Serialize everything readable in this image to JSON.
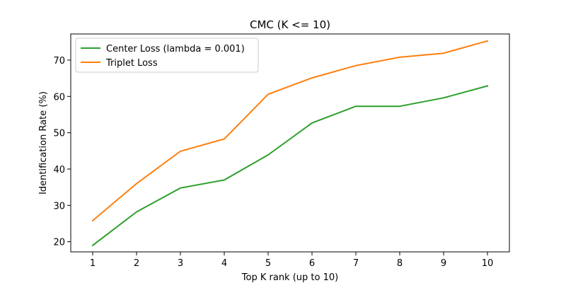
{
  "chart_data": {
    "type": "line",
    "title": "CMC (K <= 10)",
    "xlabel": "Top K rank (up to 10)",
    "ylabel": "Identification Rate (%)",
    "x": [
      1,
      2,
      3,
      4,
      5,
      6,
      7,
      8,
      9,
      10
    ],
    "xlim": [
      0.5,
      10.5
    ],
    "ylim": [
      17.2,
      77.2
    ],
    "xticks": [
      1,
      2,
      3,
      4,
      5,
      6,
      7,
      8,
      9,
      10
    ],
    "yticks": [
      20,
      30,
      40,
      50,
      60,
      70
    ],
    "grid": false,
    "legend_position": "top-left",
    "series": [
      {
        "name": "Center Loss (lambda = 0.001)",
        "color": "#2ca02c",
        "values": [
          19.0,
          28.2,
          34.8,
          37.0,
          43.9,
          52.7,
          57.3,
          57.3,
          59.6,
          62.9
        ]
      },
      {
        "name": "Triplet Loss",
        "color": "#ff7f0e",
        "values": [
          25.8,
          36.0,
          44.9,
          48.3,
          60.6,
          65.1,
          68.5,
          70.8,
          71.9,
          75.3
        ]
      }
    ]
  }
}
